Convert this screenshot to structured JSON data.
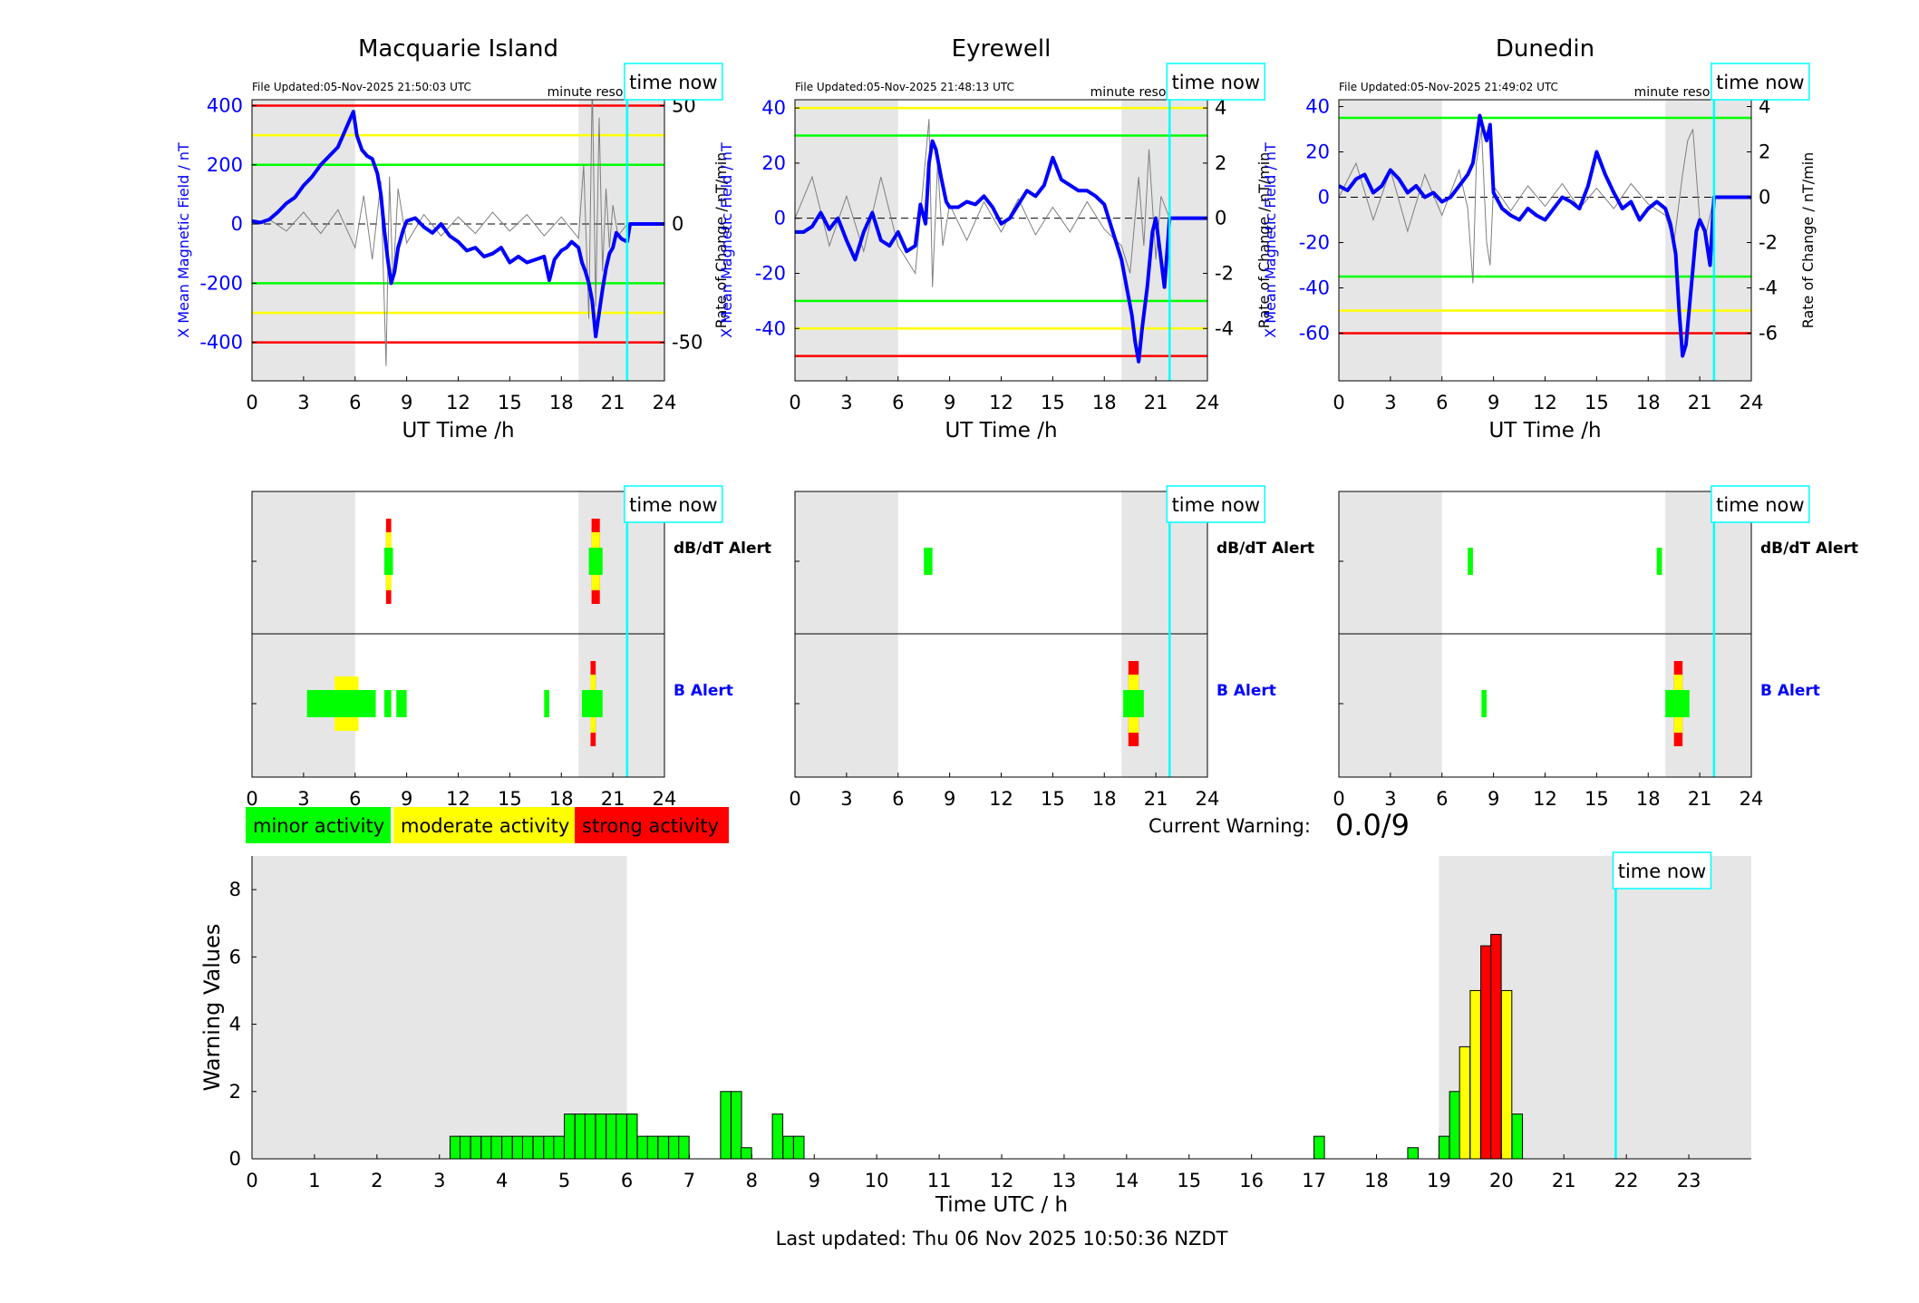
{
  "colors": {
    "blue": "#0000ff",
    "red": "#ff0000",
    "yellow": "#ffff00",
    "green": "#00ff00",
    "cyan": "#00ffff",
    "shade": "#e6e6e6",
    "grey": "#7f7f7f"
  },
  "time_now_label": "time now",
  "minute_resolution_label": "minute resolution",
  "alert_labels": {
    "dbdt": "dB/dT Alert",
    "b": "B Alert"
  },
  "legend": [
    {
      "label": "minor activity",
      "color": "#00ff00"
    },
    {
      "label": "moderate activity",
      "color": "#ffff00"
    },
    {
      "label": "strong activity",
      "color": "#ff0000"
    }
  ],
  "current_warning": {
    "label": "Current Warning:",
    "value": "0.0/9"
  },
  "footer": "Last updated: Thu 06 Nov 2025 10:50:36 NZDT",
  "chart_data": [
    {
      "type": "line",
      "station": "Macquarie Island",
      "file_updated": "File Updated:05-Nov-2025 21:50:03 UTC",
      "xlabel": "UT Time /h",
      "ylabel_left": "X Mean Magnetic Field / nT",
      "ylabel_right": "Rate of Change / nT/min",
      "xlim": [
        0,
        24
      ],
      "xticks": [
        0,
        3,
        6,
        9,
        12,
        15,
        18,
        21,
        24
      ],
      "ylim_left": [
        -530,
        420
      ],
      "yticks_left": [
        400,
        200,
        0,
        -200,
        -400
      ],
      "ylim_right": [
        -66.25,
        52.5
      ],
      "yticks_right": [
        50,
        0,
        -50
      ],
      "shade": [
        [
          0,
          6
        ],
        [
          19,
          24
        ]
      ],
      "time_now": 21.83,
      "thresholds": [
        {
          "value": 400,
          "color": "red"
        },
        {
          "value": 300,
          "color": "yellow"
        },
        {
          "value": 200,
          "color": "green"
        },
        {
          "value": -200,
          "color": "green"
        },
        {
          "value": -300,
          "color": "yellow"
        },
        {
          "value": -400,
          "color": "red"
        }
      ],
      "series": [
        {
          "x": [
            0,
            0.5,
            1,
            1.5,
            2,
            2.5,
            3,
            3.5,
            4,
            4.5,
            5,
            5.3,
            5.6,
            5.9,
            6.1,
            6.4,
            6.7,
            7,
            7.3,
            7.5,
            7.7,
            7.9,
            8.1,
            8.3,
            8.5,
            8.8,
            9,
            9.5,
            10,
            10.5,
            11,
            11.5,
            12,
            12.5,
            13,
            13.5,
            14,
            14.5,
            15,
            15.5,
            16,
            16.5,
            17,
            17.3,
            17.6,
            18,
            18.3,
            18.6,
            19,
            19.2,
            19.4,
            19.6,
            19.8,
            19.9,
            20,
            20.2,
            20.4,
            20.6,
            20.8,
            21,
            21.2,
            21.5,
            21.83,
            22,
            24
          ],
          "y": [
            10,
            5,
            15,
            40,
            70,
            90,
            130,
            160,
            200,
            230,
            260,
            300,
            340,
            380,
            300,
            250,
            230,
            220,
            170,
            100,
            -20,
            -120,
            -200,
            -160,
            -80,
            -20,
            10,
            20,
            -10,
            -30,
            0,
            -40,
            -60,
            -90,
            -80,
            -110,
            -100,
            -80,
            -130,
            -110,
            -130,
            -120,
            -110,
            -190,
            -120,
            -90,
            -80,
            -60,
            -80,
            -130,
            -160,
            -200,
            -260,
            -320,
            -380,
            -300,
            -220,
            -150,
            -100,
            -80,
            -30,
            -50,
            -60,
            0,
            0
          ]
        }
      ],
      "roc_series": {
        "x": [
          0,
          1,
          2,
          3,
          4,
          5,
          6,
          6.5,
          7,
          7.5,
          7.8,
          8,
          8.2,
          8.5,
          9,
          10,
          11,
          12,
          13,
          14,
          15,
          16,
          17,
          18,
          19,
          19.3,
          19.6,
          19.8,
          20,
          20.2,
          20.4,
          20.6,
          20.8,
          21,
          21.3,
          21.83
        ],
        "y": [
          0,
          2,
          -3,
          5,
          -4,
          6,
          -10,
          12,
          -15,
          18,
          -60,
          20,
          -25,
          15,
          -8,
          4,
          -5,
          3,
          -4,
          5,
          -3,
          4,
          -5,
          3,
          -6,
          25,
          -40,
          60,
          -35,
          45,
          -20,
          15,
          -10,
          8,
          -5,
          0
        ]
      }
    },
    {
      "type": "line",
      "station": "Eyrewell",
      "file_updated": "File Updated:05-Nov-2025 21:48:13 UTC",
      "xlabel": "UT Time /h",
      "ylabel_left": "X Mean Magnetic Field / nT",
      "ylabel_right": "Rate of Change / nT/min",
      "xlim": [
        0,
        24
      ],
      "xticks": [
        0,
        3,
        6,
        9,
        12,
        15,
        18,
        21,
        24
      ],
      "ylim_left": [
        -59,
        43
      ],
      "yticks_left": [
        40,
        20,
        0,
        -20,
        -40
      ],
      "ylim_right": [
        -5.9,
        4.3
      ],
      "yticks_right": [
        4,
        2,
        0,
        -2,
        -4
      ],
      "shade": [
        [
          0,
          6
        ],
        [
          19,
          24
        ]
      ],
      "time_now": 21.8,
      "thresholds": [
        {
          "value": 40,
          "color": "yellow"
        },
        {
          "value": 30,
          "color": "green"
        },
        {
          "value": -30,
          "color": "green"
        },
        {
          "value": -40,
          "color": "yellow"
        },
        {
          "value": -50,
          "color": "red"
        }
      ],
      "series": [
        {
          "x": [
            0,
            0.5,
            1,
            1.5,
            2,
            2.5,
            3,
            3.5,
            4,
            4.5,
            5,
            5.5,
            6,
            6.5,
            7,
            7.3,
            7.6,
            7.8,
            8,
            8.2,
            8.5,
            8.8,
            9,
            9.5,
            10,
            10.5,
            11,
            11.5,
            12,
            12.5,
            13,
            13.5,
            14,
            14.5,
            15,
            15.5,
            16,
            16.5,
            17,
            17.5,
            18,
            18.5,
            19,
            19.3,
            19.6,
            19.8,
            20,
            20.2,
            20.5,
            20.8,
            21,
            21.2,
            21.5,
            21.8,
            22,
            24
          ],
          "y": [
            -5,
            -5,
            -3,
            2,
            -4,
            0,
            -8,
            -15,
            -5,
            2,
            -8,
            -10,
            -5,
            -12,
            -10,
            5,
            -2,
            20,
            28,
            25,
            15,
            6,
            4,
            4,
            6,
            5,
            8,
            4,
            -2,
            0,
            5,
            10,
            8,
            12,
            22,
            14,
            12,
            10,
            10,
            8,
            5,
            -5,
            -15,
            -25,
            -35,
            -45,
            -52,
            -40,
            -25,
            -5,
            0,
            -10,
            -25,
            0,
            0,
            0
          ]
        }
      ],
      "roc_series": {
        "x": [
          0,
          1,
          2,
          3,
          4,
          5,
          6,
          7,
          7.5,
          7.8,
          8,
          8.3,
          8.6,
          9,
          10,
          11,
          12,
          13,
          14,
          15,
          16,
          17,
          18,
          19,
          19.5,
          20,
          20.3,
          20.6,
          21,
          21.3,
          21.8
        ],
        "y": [
          0,
          1.5,
          -1,
          0.8,
          -1.2,
          1.5,
          -1,
          -2,
          1.5,
          3.6,
          -2.5,
          2,
          -1,
          0.5,
          -0.8,
          0.6,
          -0.5,
          0.7,
          -0.6,
          0.4,
          -0.5,
          0.6,
          -0.4,
          -1,
          -2,
          1.5,
          -1,
          2.5,
          -1.5,
          0.8,
          0
        ]
      }
    },
    {
      "type": "line",
      "station": "Dunedin",
      "file_updated": "File Updated:05-Nov-2025 21:49:02 UTC",
      "xlabel": "UT Time /h",
      "ylabel_left": "X Mean Magnetic Field / nT",
      "ylabel_right": "Rate of Change / nT/min",
      "xlim": [
        0,
        24
      ],
      "xticks": [
        0,
        3,
        6,
        9,
        12,
        15,
        18,
        21,
        24
      ],
      "ylim_left": [
        -81,
        43
      ],
      "yticks_left": [
        40,
        20,
        0,
        -20,
        -40,
        -60
      ],
      "ylim_right": [
        -8.1,
        4.3
      ],
      "yticks_right": [
        4,
        2,
        0,
        -2,
        -4,
        -6
      ],
      "shade": [
        [
          0,
          6
        ],
        [
          19,
          24
        ]
      ],
      "time_now": 21.83,
      "thresholds": [
        {
          "value": 35,
          "color": "green"
        },
        {
          "value": -35,
          "color": "green"
        },
        {
          "value": -50,
          "color": "yellow"
        },
        {
          "value": -60,
          "color": "red"
        }
      ],
      "series": [
        {
          "x": [
            0,
            0.5,
            1,
            1.5,
            2,
            2.5,
            3,
            3.5,
            4,
            4.5,
            5,
            5.5,
            6,
            6.5,
            7,
            7.5,
            7.8,
            8,
            8.2,
            8.4,
            8.6,
            8.8,
            9,
            9.5,
            10,
            10.5,
            11,
            11.5,
            12,
            12.5,
            13,
            13.5,
            14,
            14.5,
            15,
            15.5,
            16,
            16.5,
            17,
            17.5,
            18,
            18.5,
            19,
            19.3,
            19.6,
            19.8,
            20,
            20.2,
            20.5,
            20.8,
            21,
            21.3,
            21.6,
            21.83,
            22,
            24
          ],
          "y": [
            5,
            3,
            8,
            10,
            2,
            5,
            12,
            8,
            2,
            5,
            0,
            2,
            -2,
            0,
            5,
            10,
            15,
            25,
            36,
            30,
            25,
            32,
            2,
            -5,
            -8,
            -10,
            -5,
            -8,
            -10,
            -5,
            0,
            -2,
            -5,
            5,
            20,
            10,
            2,
            -5,
            -2,
            -10,
            -5,
            -2,
            -5,
            -12,
            -25,
            -50,
            -70,
            -65,
            -40,
            -15,
            -10,
            -15,
            -30,
            0,
            0,
            0
          ]
        }
      ],
      "roc_series": {
        "x": [
          0,
          1,
          2,
          3,
          4,
          5,
          6,
          7,
          7.5,
          7.8,
          8,
          8.3,
          8.6,
          8.8,
          9,
          10,
          11,
          12,
          13,
          14,
          15,
          16,
          17,
          18,
          19,
          19.5,
          20,
          20.3,
          20.6,
          21,
          21.4,
          21.83
        ],
        "y": [
          0,
          1.5,
          -1,
          1.2,
          -1.5,
          1,
          -0.8,
          1.2,
          -0.5,
          -3.8,
          1.5,
          3,
          -2,
          -3,
          0.5,
          -0.6,
          0.5,
          -0.4,
          0.6,
          -0.5,
          0.4,
          -0.5,
          0.6,
          -0.3,
          -0.8,
          -2,
          1,
          2.5,
          3,
          -1,
          -1.5,
          0
        ]
      }
    },
    {
      "type": "bar",
      "title": "",
      "xlabel": "Time UTC / h",
      "ylabel": "Warning Values",
      "xlim": [
        0,
        24
      ],
      "xticks": [
        0,
        1,
        2,
        3,
        4,
        5,
        6,
        7,
        8,
        9,
        10,
        11,
        12,
        13,
        14,
        15,
        16,
        17,
        18,
        19,
        20,
        21,
        22,
        23
      ],
      "ylim": [
        0,
        9
      ],
      "yticks": [
        0,
        2,
        4,
        6,
        8
      ],
      "shade": [
        [
          0,
          6
        ],
        [
          19,
          24
        ]
      ],
      "time_now": 21.83,
      "bar_width": 0.1667,
      "bars": [
        {
          "x": 3.17,
          "v": 0.67
        },
        {
          "x": 3.33,
          "v": 0.67
        },
        {
          "x": 3.5,
          "v": 0.67
        },
        {
          "x": 3.67,
          "v": 0.67
        },
        {
          "x": 3.83,
          "v": 0.67
        },
        {
          "x": 4,
          "v": 0.67
        },
        {
          "x": 4.17,
          "v": 0.67
        },
        {
          "x": 4.33,
          "v": 0.67
        },
        {
          "x": 4.5,
          "v": 0.67
        },
        {
          "x": 4.67,
          "v": 0.67
        },
        {
          "x": 4.83,
          "v": 0.67
        },
        {
          "x": 5,
          "v": 1.33
        },
        {
          "x": 5.17,
          "v": 1.33
        },
        {
          "x": 5.33,
          "v": 1.33
        },
        {
          "x": 5.5,
          "v": 1.33
        },
        {
          "x": 5.67,
          "v": 1.33
        },
        {
          "x": 5.83,
          "v": 1.33
        },
        {
          "x": 6,
          "v": 1.33
        },
        {
          "x": 6.17,
          "v": 0.67
        },
        {
          "x": 6.33,
          "v": 0.67
        },
        {
          "x": 6.5,
          "v": 0.67
        },
        {
          "x": 6.67,
          "v": 0.67
        },
        {
          "x": 6.83,
          "v": 0.67
        },
        {
          "x": 7.5,
          "v": 2
        },
        {
          "x": 7.67,
          "v": 2
        },
        {
          "x": 7.83,
          "v": 0.33
        },
        {
          "x": 8.33,
          "v": 1.33
        },
        {
          "x": 8.5,
          "v": 0.67
        },
        {
          "x": 8.67,
          "v": 0.67
        },
        {
          "x": 17,
          "v": 0.67
        },
        {
          "x": 18.5,
          "v": 0.33
        },
        {
          "x": 19,
          "v": 0.67
        },
        {
          "x": 19.17,
          "v": 2
        },
        {
          "x": 19.33,
          "v": 3.33
        },
        {
          "x": 19.5,
          "v": 5
        },
        {
          "x": 19.67,
          "v": 6.33
        },
        {
          "x": 19.83,
          "v": 6.67
        },
        {
          "x": 20,
          "v": 5
        },
        {
          "x": 20.17,
          "v": 1.33
        }
      ]
    }
  ],
  "alert_panels": [
    {
      "shade": [
        [
          0,
          6
        ],
        [
          19,
          24
        ]
      ],
      "time_now": 21.83,
      "dbdt": [
        {
          "x0": 7.7,
          "x1": 8.2,
          "level": "strong"
        },
        {
          "x0": 19.6,
          "x1": 20.4,
          "level": "strong"
        }
      ],
      "b": [
        {
          "x0": 3.2,
          "x1": 7.2,
          "level": "moderate",
          "core": [
            4.8,
            6.2
          ]
        },
        {
          "x0": 7.7,
          "x1": 8.1,
          "level": "minor"
        },
        {
          "x0": 8.4,
          "x1": 9,
          "level": "minor"
        },
        {
          "x0": 17,
          "x1": 17.3,
          "level": "minor"
        },
        {
          "x0": 19.2,
          "x1": 20.4,
          "level": "strong",
          "core": [
            19.7,
            20
          ]
        }
      ]
    },
    {
      "shade": [
        [
          0,
          6
        ],
        [
          19,
          24
        ]
      ],
      "time_now": 21.8,
      "dbdt": [
        {
          "x0": 7.5,
          "x1": 8,
          "level": "minor"
        }
      ],
      "b": [
        {
          "x0": 19.1,
          "x1": 20.3,
          "level": "strong",
          "core": [
            19.4,
            20
          ]
        }
      ]
    },
    {
      "shade": [
        [
          0,
          6
        ],
        [
          19,
          24
        ]
      ],
      "time_now": 21.83,
      "dbdt": [
        {
          "x0": 7.5,
          "x1": 7.8,
          "level": "minor"
        },
        {
          "x0": 18.5,
          "x1": 18.8,
          "level": "minor"
        }
      ],
      "b": [
        {
          "x0": 8.3,
          "x1": 8.6,
          "level": "minor"
        },
        {
          "x0": 19,
          "x1": 20.4,
          "level": "strong",
          "core": [
            19.5,
            20
          ]
        }
      ]
    }
  ]
}
